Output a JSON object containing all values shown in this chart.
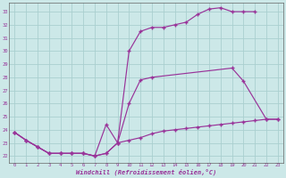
{
  "xlabel": "Windchill (Refroidissement éolien,°C)",
  "bg_color": "#cce8e8",
  "grid_color": "#aacfcf",
  "line_color": "#993399",
  "xlim": [
    -0.5,
    23.5
  ],
  "ylim": [
    21.5,
    33.7
  ],
  "yticks": [
    22,
    23,
    24,
    25,
    26,
    27,
    28,
    29,
    30,
    31,
    32,
    33
  ],
  "xticks": [
    0,
    1,
    2,
    3,
    4,
    5,
    6,
    7,
    8,
    9,
    10,
    11,
    12,
    13,
    14,
    15,
    16,
    17,
    18,
    19,
    20,
    21,
    22,
    23
  ],
  "line1_x": [
    0,
    1,
    2,
    3,
    4,
    5,
    6,
    7,
    8,
    9,
    10,
    11,
    12,
    13,
    14,
    15,
    16,
    17,
    18,
    19,
    20,
    21
  ],
  "line1_y": [
    23.8,
    23.2,
    22.7,
    22.2,
    22.2,
    22.2,
    22.2,
    22.0,
    22.2,
    23.0,
    30.0,
    31.5,
    31.8,
    31.8,
    32.0,
    32.2,
    32.8,
    33.2,
    33.3,
    33.0,
    33.0,
    33.0
  ],
  "line2_x": [
    0,
    1,
    2,
    3,
    4,
    5,
    6,
    7,
    8,
    9,
    10,
    11,
    12,
    19,
    20,
    22,
    23
  ],
  "line2_y": [
    23.8,
    23.2,
    22.7,
    22.2,
    22.2,
    22.2,
    22.2,
    22.0,
    24.4,
    23.0,
    26.0,
    27.8,
    28.0,
    28.7,
    27.7,
    24.8,
    24.8
  ],
  "line3_x": [
    0,
    1,
    2,
    3,
    4,
    5,
    6,
    7,
    8,
    9,
    10,
    11,
    12,
    13,
    14,
    15,
    16,
    17,
    18,
    19,
    20,
    21,
    22,
    23
  ],
  "line3_y": [
    23.8,
    23.2,
    22.7,
    22.2,
    22.2,
    22.2,
    22.2,
    22.0,
    22.2,
    23.0,
    23.2,
    23.4,
    23.7,
    23.9,
    24.0,
    24.1,
    24.2,
    24.3,
    24.4,
    24.5,
    24.6,
    24.7,
    24.8,
    24.8
  ]
}
